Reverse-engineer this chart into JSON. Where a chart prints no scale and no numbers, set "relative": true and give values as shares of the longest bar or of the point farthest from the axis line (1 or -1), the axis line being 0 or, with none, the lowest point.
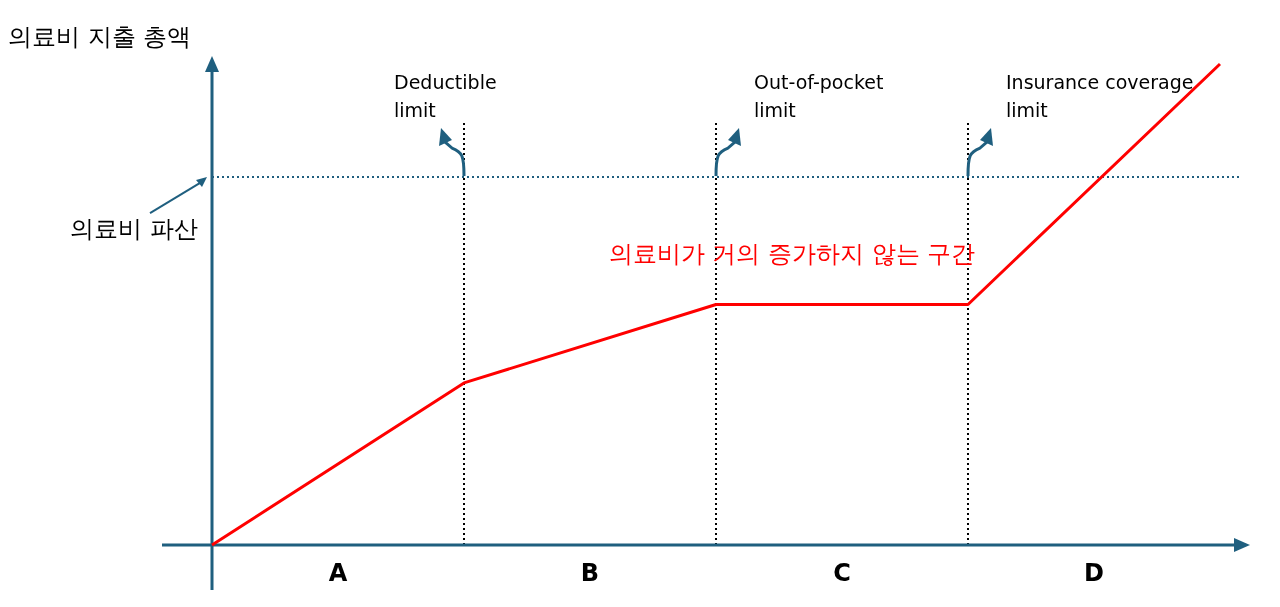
{
  "chart_data": {
    "type": "line",
    "relative": true,
    "grid": "x",
    "ylabel": "의료비 지출 총액",
    "categories": [
      null,
      null,
      null,
      null,
      null
    ],
    "series": [
      {
        "color": "#ff0000",
        "values": [
          0,
          0.337,
          0.5,
          0.5,
          1
        ]
      }
    ],
    "ref_lines": [
      {
        "axis": "y",
        "value": 0.765,
        "label": "의료비 파산",
        "color": "#1f5f7f",
        "line_style": "dotted"
      }
    ],
    "annotations": [
      "Deductible limit",
      "Out-of-pocket limit",
      "Insurance coverage limit",
      "A",
      "B",
      "C",
      "D",
      "의료비가 거의 증가하지 않는 구간"
    ]
  }
}
